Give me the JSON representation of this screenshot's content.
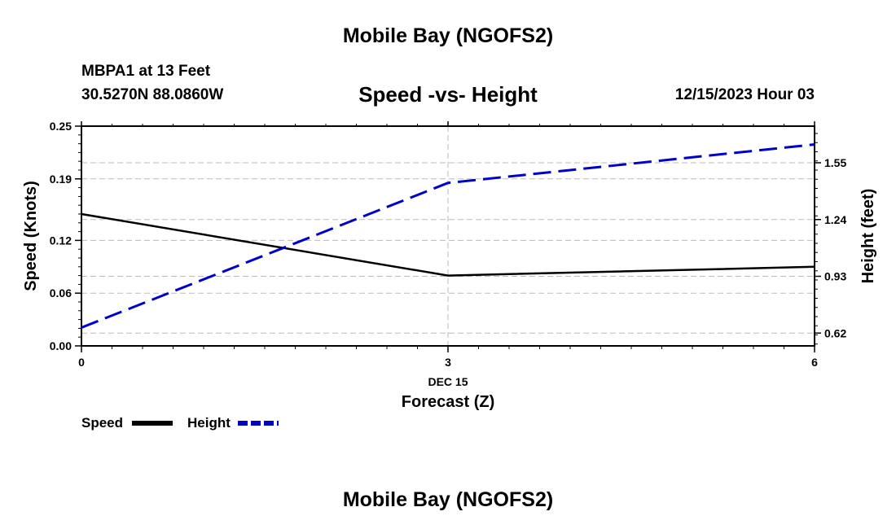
{
  "header": {
    "title": "Mobile Bay (NGOFS2)",
    "station": "MBPA1 at 13 Feet",
    "coordinates": "30.5270N  88.0860W",
    "chart_title": "Speed -vs- Height",
    "datetime": "12/15/2023 Hour 03"
  },
  "footer": {
    "title": "Mobile Bay (NGOFS2)"
  },
  "chart_data": {
    "type": "line",
    "title": "Speed -vs- Height",
    "xlabel": "Forecast (Z)",
    "x_date_label": "DEC 15",
    "x": [
      0,
      3,
      6
    ],
    "x_tick_labels": [
      "0",
      "3",
      "6"
    ],
    "xlim": [
      0,
      6
    ],
    "ylabel_left": "Speed (Knots)",
    "ylim_left": [
      0,
      0.25
    ],
    "y_left_ticks": [
      0.0,
      0.06,
      0.12,
      0.19,
      0.25
    ],
    "y_left_tick_labels": [
      "0.00",
      "0.06",
      "0.12",
      "0.19",
      "0.25"
    ],
    "ylabel_right": "Height (feet)",
    "ylim_right": [
      0.55,
      1.75
    ],
    "y_right_ticks": [
      0.62,
      0.93,
      1.24,
      1.55
    ],
    "y_right_tick_labels": [
      "0.62",
      "0.93",
      "1.24",
      "1.55"
    ],
    "grid": true,
    "legend_position": "bottom-left",
    "series": [
      {
        "name": "Speed",
        "axis": "left",
        "style": "solid",
        "color": "#000000",
        "values": [
          0.15,
          0.08,
          0.09
        ]
      },
      {
        "name": "Height",
        "axis": "right",
        "style": "dashed",
        "color": "#0000cc",
        "values": [
          0.65,
          1.44,
          1.65
        ]
      }
    ]
  }
}
